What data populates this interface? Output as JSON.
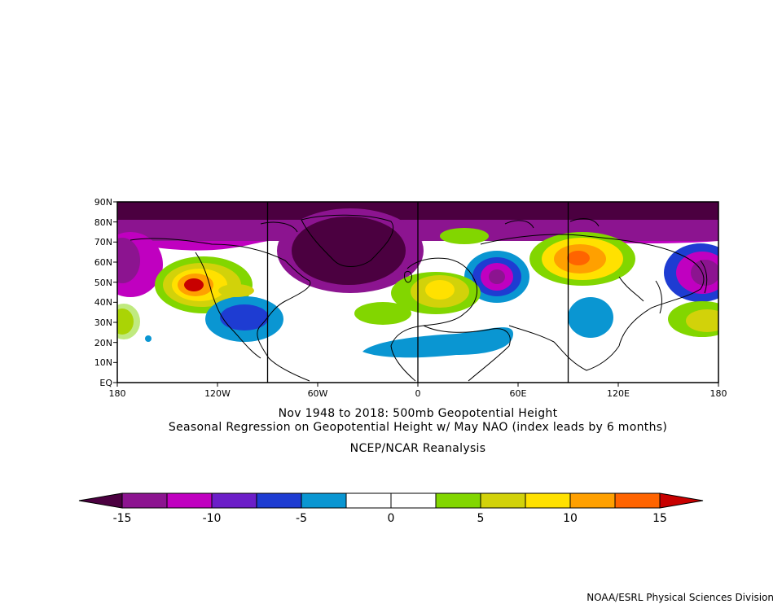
{
  "titles": {
    "line1": "Nov 1948 to 2018: 500mb Geopotential Height",
    "line2": "Seasonal Regression on Geopotential Height  w/ May NAO (index leads by 6 months)",
    "line3": "NCEP/NCAR Reanalysis"
  },
  "credit": "NOAA/ESRL Physical Sciences Division",
  "map": {
    "lat_labels": [
      "90N",
      "80N",
      "70N",
      "60N",
      "50N",
      "40N",
      "30N",
      "20N",
      "10N",
      "EQ"
    ],
    "lon_labels": [
      "180",
      "120W",
      "60W",
      "0",
      "60E",
      "120E",
      "180"
    ]
  },
  "colorbar": {
    "tick_labels": [
      "-15",
      "-10",
      "-5",
      "0",
      "5",
      "10",
      "15"
    ],
    "colors": [
      "#4b0040",
      "#8c1490",
      "#c000c0",
      "#6c1ec8",
      "#1e3cd2",
      "#0a96d2",
      "#ffffff",
      "#ffffff",
      "#82d600",
      "#d2d20a",
      "#ffe100",
      "#ffa000",
      "#ff6400",
      "#c80000"
    ]
  }
}
